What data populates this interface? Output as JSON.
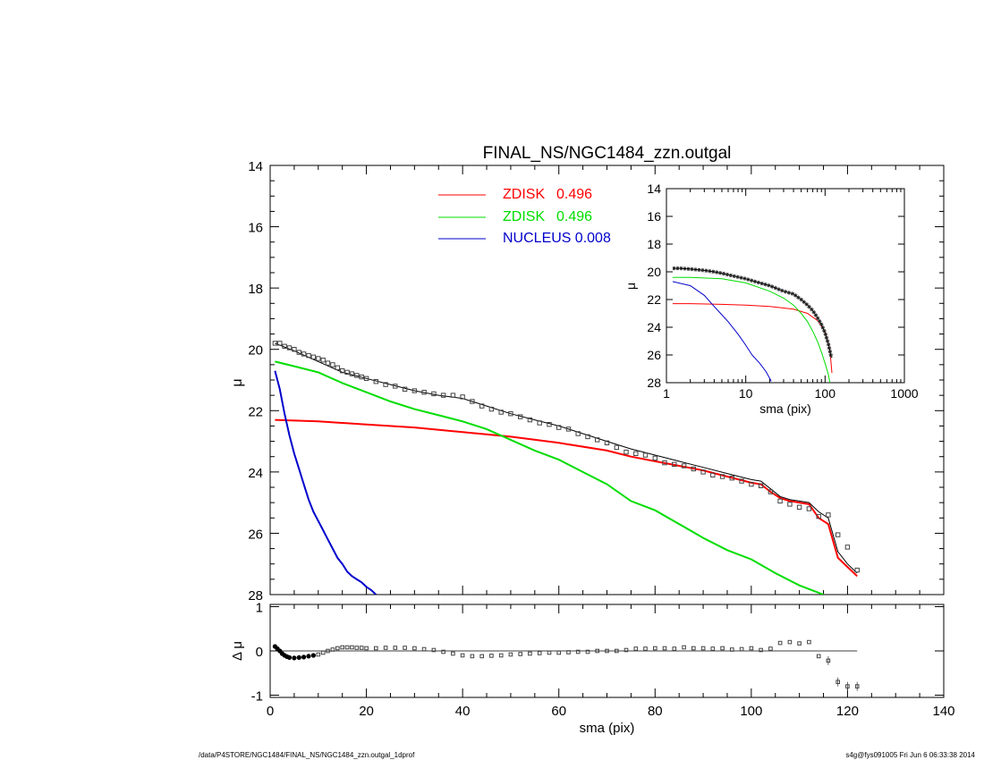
{
  "footer": {
    "left": "/data/P4STORE/NGC1484/FINAL_NS/NGC1484_zzn.outgal_1dprof",
    "right": "s4g@fys091005  Fri Jun  6 06:33:38 2014"
  },
  "colors": {
    "data": "#555555",
    "model": "#000000",
    "zdisk1": "#ff0000",
    "zdisk2": "#00dd00",
    "nucleus": "#0000cc"
  },
  "chart_data": [
    {
      "id": "main",
      "type": "line",
      "title": "FINAL_NS/NGC1484_zzn.outgal",
      "xlabel": "",
      "ylabel": "μ",
      "xlim": [
        0,
        140
      ],
      "ylim": [
        28,
        14
      ],
      "yticks": [
        "14",
        "16",
        "18",
        "20",
        "22",
        "24",
        "26",
        "28"
      ],
      "legend": [
        {
          "label": "ZDISK",
          "value": "0.496",
          "color": "#ff0000"
        },
        {
          "label": "ZDISK",
          "value": "0.496",
          "color": "#00dd00"
        },
        {
          "label": "NUCLEUS",
          "value": "0.008",
          "color": "#0000cc"
        }
      ],
      "data_points": {
        "x": [
          1,
          2,
          3,
          4,
          5,
          6,
          7,
          8,
          9,
          10,
          11,
          12,
          13,
          14,
          15,
          16,
          17,
          18,
          19,
          20,
          22,
          24,
          26,
          28,
          30,
          32,
          34,
          36,
          38,
          40,
          42,
          44,
          46,
          48,
          50,
          52,
          54,
          56,
          58,
          60,
          62,
          64,
          66,
          68,
          70,
          72,
          74,
          76,
          78,
          80,
          82,
          84,
          86,
          88,
          90,
          92,
          94,
          96,
          98,
          100,
          102,
          104,
          106,
          108,
          110,
          112,
          114,
          116,
          118,
          120,
          122
        ],
        "y": [
          19.8,
          19.8,
          19.9,
          19.95,
          20.0,
          20.1,
          20.15,
          20.2,
          20.25,
          20.3,
          20.35,
          20.45,
          20.5,
          20.6,
          20.7,
          20.75,
          20.8,
          20.85,
          20.9,
          20.95,
          21.05,
          21.15,
          21.2,
          21.3,
          21.35,
          21.4,
          21.45,
          21.5,
          21.5,
          21.55,
          21.7,
          21.85,
          21.95,
          22.05,
          22.1,
          22.2,
          22.3,
          22.4,
          22.45,
          22.55,
          22.6,
          22.75,
          22.85,
          22.95,
          23.05,
          23.2,
          23.35,
          23.4,
          23.45,
          23.55,
          23.7,
          23.75,
          23.8,
          23.9,
          24.0,
          24.1,
          24.15,
          24.2,
          24.3,
          24.4,
          24.45,
          24.65,
          24.95,
          25.05,
          25.15,
          25.2,
          25.45,
          25.4,
          26.05,
          26.45,
          27.2
        ]
      },
      "model": {
        "x": [
          1,
          5,
          10,
          15,
          20,
          25,
          30,
          35,
          40,
          45,
          50,
          55,
          60,
          65,
          70,
          75,
          80,
          85,
          90,
          95,
          100,
          102,
          104,
          106,
          108,
          110,
          112,
          114,
          116,
          118,
          120,
          122
        ],
        "y": [
          19.8,
          20.05,
          20.4,
          20.75,
          20.95,
          21.15,
          21.35,
          21.5,
          21.6,
          21.85,
          22.1,
          22.3,
          22.5,
          22.75,
          23.0,
          23.25,
          23.45,
          23.65,
          23.85,
          24.05,
          24.25,
          24.3,
          24.55,
          24.8,
          24.9,
          24.95,
          25.0,
          25.3,
          25.5,
          26.6,
          27.0,
          27.3
        ]
      },
      "series": [
        {
          "color": "#ff0000",
          "x": [
            1,
            10,
            20,
            30,
            40,
            50,
            60,
            70,
            75,
            80,
            85,
            90,
            95,
            100,
            102,
            104,
            106,
            108,
            110,
            112,
            114,
            116,
            118,
            120,
            122
          ],
          "y": [
            22.3,
            22.35,
            22.45,
            22.55,
            22.7,
            22.85,
            23.05,
            23.3,
            23.5,
            23.65,
            23.8,
            23.95,
            24.15,
            24.35,
            24.4,
            24.65,
            24.85,
            24.95,
            25.0,
            25.05,
            25.5,
            25.7,
            26.8,
            27.1,
            27.4
          ]
        },
        {
          "color": "#00dd00",
          "x": [
            1,
            5,
            10,
            15,
            20,
            25,
            30,
            35,
            40,
            45,
            50,
            55,
            60,
            65,
            70,
            75,
            80,
            85,
            90,
            95,
            100,
            105,
            110,
            115
          ],
          "y": [
            20.4,
            20.55,
            20.75,
            21.1,
            21.4,
            21.7,
            21.95,
            22.15,
            22.35,
            22.6,
            22.95,
            23.3,
            23.6,
            24.0,
            24.4,
            24.95,
            25.25,
            25.7,
            26.15,
            26.55,
            26.85,
            27.3,
            27.7,
            28.0
          ]
        },
        {
          "color": "#0000cc",
          "x": [
            1,
            2,
            3,
            4,
            5,
            6,
            7,
            8,
            9,
            10,
            11,
            12,
            13,
            14,
            15,
            16,
            17,
            18,
            19,
            20,
            21,
            22
          ],
          "y": [
            20.7,
            21.3,
            22.1,
            22.8,
            23.4,
            23.9,
            24.4,
            24.9,
            25.3,
            25.6,
            25.9,
            26.2,
            26.5,
            26.8,
            27.0,
            27.25,
            27.4,
            27.5,
            27.6,
            27.75,
            27.85,
            28.0
          ]
        }
      ]
    },
    {
      "id": "residual",
      "type": "scatter",
      "xlabel": "sma (pix)",
      "ylabel": "Δ μ",
      "xlim": [
        0,
        140
      ],
      "ylim": [
        -1.05,
        1.05
      ],
      "xticks": [
        "0",
        "20",
        "40",
        "60",
        "80",
        "100",
        "120",
        "140"
      ],
      "yticks": [
        "1",
        "0",
        "-1"
      ],
      "x": [
        1,
        1.5,
        2,
        2.5,
        3,
        3.5,
        4,
        5,
        6,
        7,
        8,
        9,
        10,
        11,
        12,
        13,
        14,
        15,
        16,
        17,
        18,
        19,
        20,
        22,
        24,
        26,
        28,
        30,
        32,
        34,
        36,
        38,
        40,
        42,
        44,
        46,
        48,
        50,
        52,
        54,
        56,
        58,
        60,
        62,
        64,
        66,
        68,
        70,
        72,
        74,
        76,
        78,
        80,
        82,
        84,
        86,
        88,
        90,
        92,
        94,
        96,
        98,
        100,
        102,
        104,
        106,
        108,
        110,
        112,
        114,
        116,
        118,
        120,
        122
      ],
      "values": [
        0.1,
        0.05,
        0.0,
        -0.06,
        -0.1,
        -0.13,
        -0.15,
        -0.16,
        -0.15,
        -0.14,
        -0.12,
        -0.1,
        -0.08,
        -0.04,
        0.0,
        0.03,
        0.06,
        0.08,
        0.08,
        0.08,
        0.07,
        0.07,
        0.06,
        0.06,
        0.07,
        0.07,
        0.07,
        0.06,
        0.04,
        0.02,
        -0.02,
        -0.06,
        -0.1,
        -0.12,
        -0.12,
        -0.11,
        -0.1,
        -0.08,
        -0.07,
        -0.06,
        -0.05,
        -0.04,
        -0.04,
        -0.03,
        -0.02,
        -0.02,
        0.0,
        0.0,
        0.0,
        0.02,
        0.05,
        0.05,
        0.06,
        0.06,
        0.05,
        0.08,
        0.06,
        0.06,
        0.05,
        0.06,
        0.03,
        0.04,
        0.06,
        0.02,
        0.05,
        0.18,
        0.2,
        0.17,
        0.2,
        -0.12,
        -0.22,
        -0.7,
        -0.8,
        -0.8
      ]
    },
    {
      "id": "inset",
      "type": "line",
      "xlabel": "sma (pix)",
      "ylabel": "μ",
      "xscale": "log",
      "xlim": [
        1,
        1000
      ],
      "ylim": [
        28,
        14
      ],
      "xticks": [
        "1",
        "10",
        "100",
        "1000"
      ],
      "yticks": [
        "14",
        "16",
        "18",
        "20",
        "22",
        "24",
        "26",
        "28"
      ],
      "data_points": {
        "x": [
          1.2,
          1.5,
          2,
          3,
          4,
          5,
          7,
          10,
          15,
          20,
          30,
          40,
          50,
          60,
          70,
          80,
          90,
          100,
          110,
          120
        ],
        "y": [
          19.75,
          19.75,
          19.8,
          19.9,
          20.0,
          20.1,
          20.3,
          20.5,
          20.8,
          21.0,
          21.4,
          21.6,
          22.0,
          22.4,
          22.8,
          23.3,
          23.8,
          24.4,
          25.2,
          26.2
        ]
      },
      "series": [
        {
          "color": "#ff0000",
          "x": [
            1.2,
            2,
            5,
            10,
            20,
            40,
            60,
            80,
            100,
            115,
            122
          ],
          "y": [
            22.3,
            22.3,
            22.35,
            22.4,
            22.5,
            22.7,
            23.0,
            23.5,
            24.3,
            25.6,
            27.3
          ]
        },
        {
          "color": "#00dd00",
          "x": [
            1.2,
            2,
            5,
            10,
            20,
            30,
            40,
            50,
            60,
            70,
            80,
            90,
            100,
            110,
            115
          ],
          "y": [
            20.4,
            20.4,
            20.5,
            20.8,
            21.4,
            21.9,
            22.4,
            23.0,
            23.6,
            24.3,
            25.0,
            25.8,
            26.6,
            27.4,
            28.0
          ]
        },
        {
          "color": "#0000cc",
          "x": [
            1.2,
            2,
            3,
            4,
            5,
            6,
            8,
            10,
            12,
            15,
            18,
            21
          ],
          "y": [
            20.7,
            21.0,
            21.7,
            22.5,
            23.1,
            23.6,
            24.5,
            25.3,
            26.0,
            26.6,
            27.2,
            27.9
          ]
        }
      ]
    }
  ]
}
